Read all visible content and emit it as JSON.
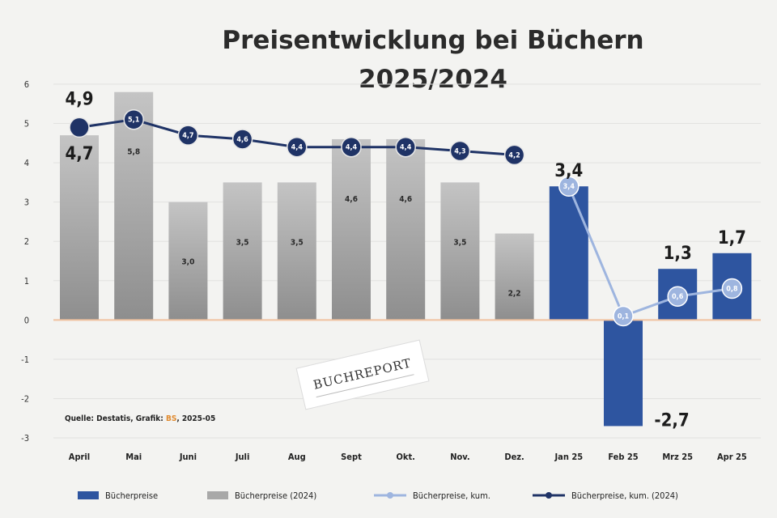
{
  "chart_data": {
    "type": "bar",
    "title": [
      "Preisentwicklung bei Büchern",
      "2025/2024"
    ],
    "categories": [
      "April",
      "Mai",
      "Juni",
      "Juli",
      "Aug",
      "Sept",
      "Okt.",
      "Nov.",
      "Dez.",
      "Jan 25",
      "Feb 25",
      "Mrz 25",
      "Apr 25"
    ],
    "ylim": [
      -3,
      6
    ],
    "yticks": [
      "-3",
      "-2",
      "-1",
      "0",
      "1",
      "2",
      "3",
      "4",
      "5",
      "6"
    ],
    "grid": true,
    "series": [
      {
        "name": "Bücherpreise",
        "kind": "bar",
        "color": "#2e55a0",
        "values": [
          null,
          null,
          null,
          null,
          null,
          null,
          null,
          null,
          null,
          3.4,
          -2.7,
          1.3,
          1.7
        ],
        "labels": [
          "",
          "",
          "",
          "",
          "",
          "",
          "",
          "",
          "",
          "3,4",
          "-2,7",
          "1,3",
          "1,7"
        ]
      },
      {
        "name": "Bücherpreise (2024)",
        "kind": "bar",
        "color": "#a8a8a8",
        "values": [
          4.7,
          5.8,
          3.0,
          3.5,
          3.5,
          4.6,
          4.6,
          3.5,
          2.2,
          null,
          null,
          null,
          null
        ],
        "labels": [
          "4,7",
          "5,8",
          "3,0",
          "3,5",
          "3,5",
          "4,6",
          "4,6",
          "3,5",
          "2,2",
          "",
          "",
          "",
          ""
        ]
      },
      {
        "name": "Bücherpreise, kum.",
        "kind": "line",
        "color": "#9eb5df",
        "values": [
          null,
          null,
          null,
          null,
          null,
          null,
          null,
          null,
          null,
          3.4,
          0.1,
          0.6,
          0.8
        ],
        "labels": [
          "",
          "",
          "",
          "",
          "",
          "",
          "",
          "",
          "",
          "3,4",
          "0,1",
          "0,6",
          "0,8"
        ]
      },
      {
        "name": "Bücherpreise, kum. (2024)",
        "kind": "line",
        "color": "#1f3366",
        "values": [
          4.9,
          5.1,
          4.7,
          4.6,
          4.4,
          4.4,
          4.4,
          4.3,
          4.2,
          null,
          null,
          null,
          null
        ],
        "labels": [
          "4,9",
          "5,1",
          "4,7",
          "4,6",
          "4,4",
          "4,4",
          "4,4",
          "4,3",
          "4,2",
          "",
          "",
          "",
          ""
        ]
      }
    ],
    "legend": "bottom",
    "source": "Quelle: Destatis, Grafik: ",
    "source_highlight": "BS",
    "source_end": ", 2025-05",
    "watermark": "BUCHREPORT"
  }
}
